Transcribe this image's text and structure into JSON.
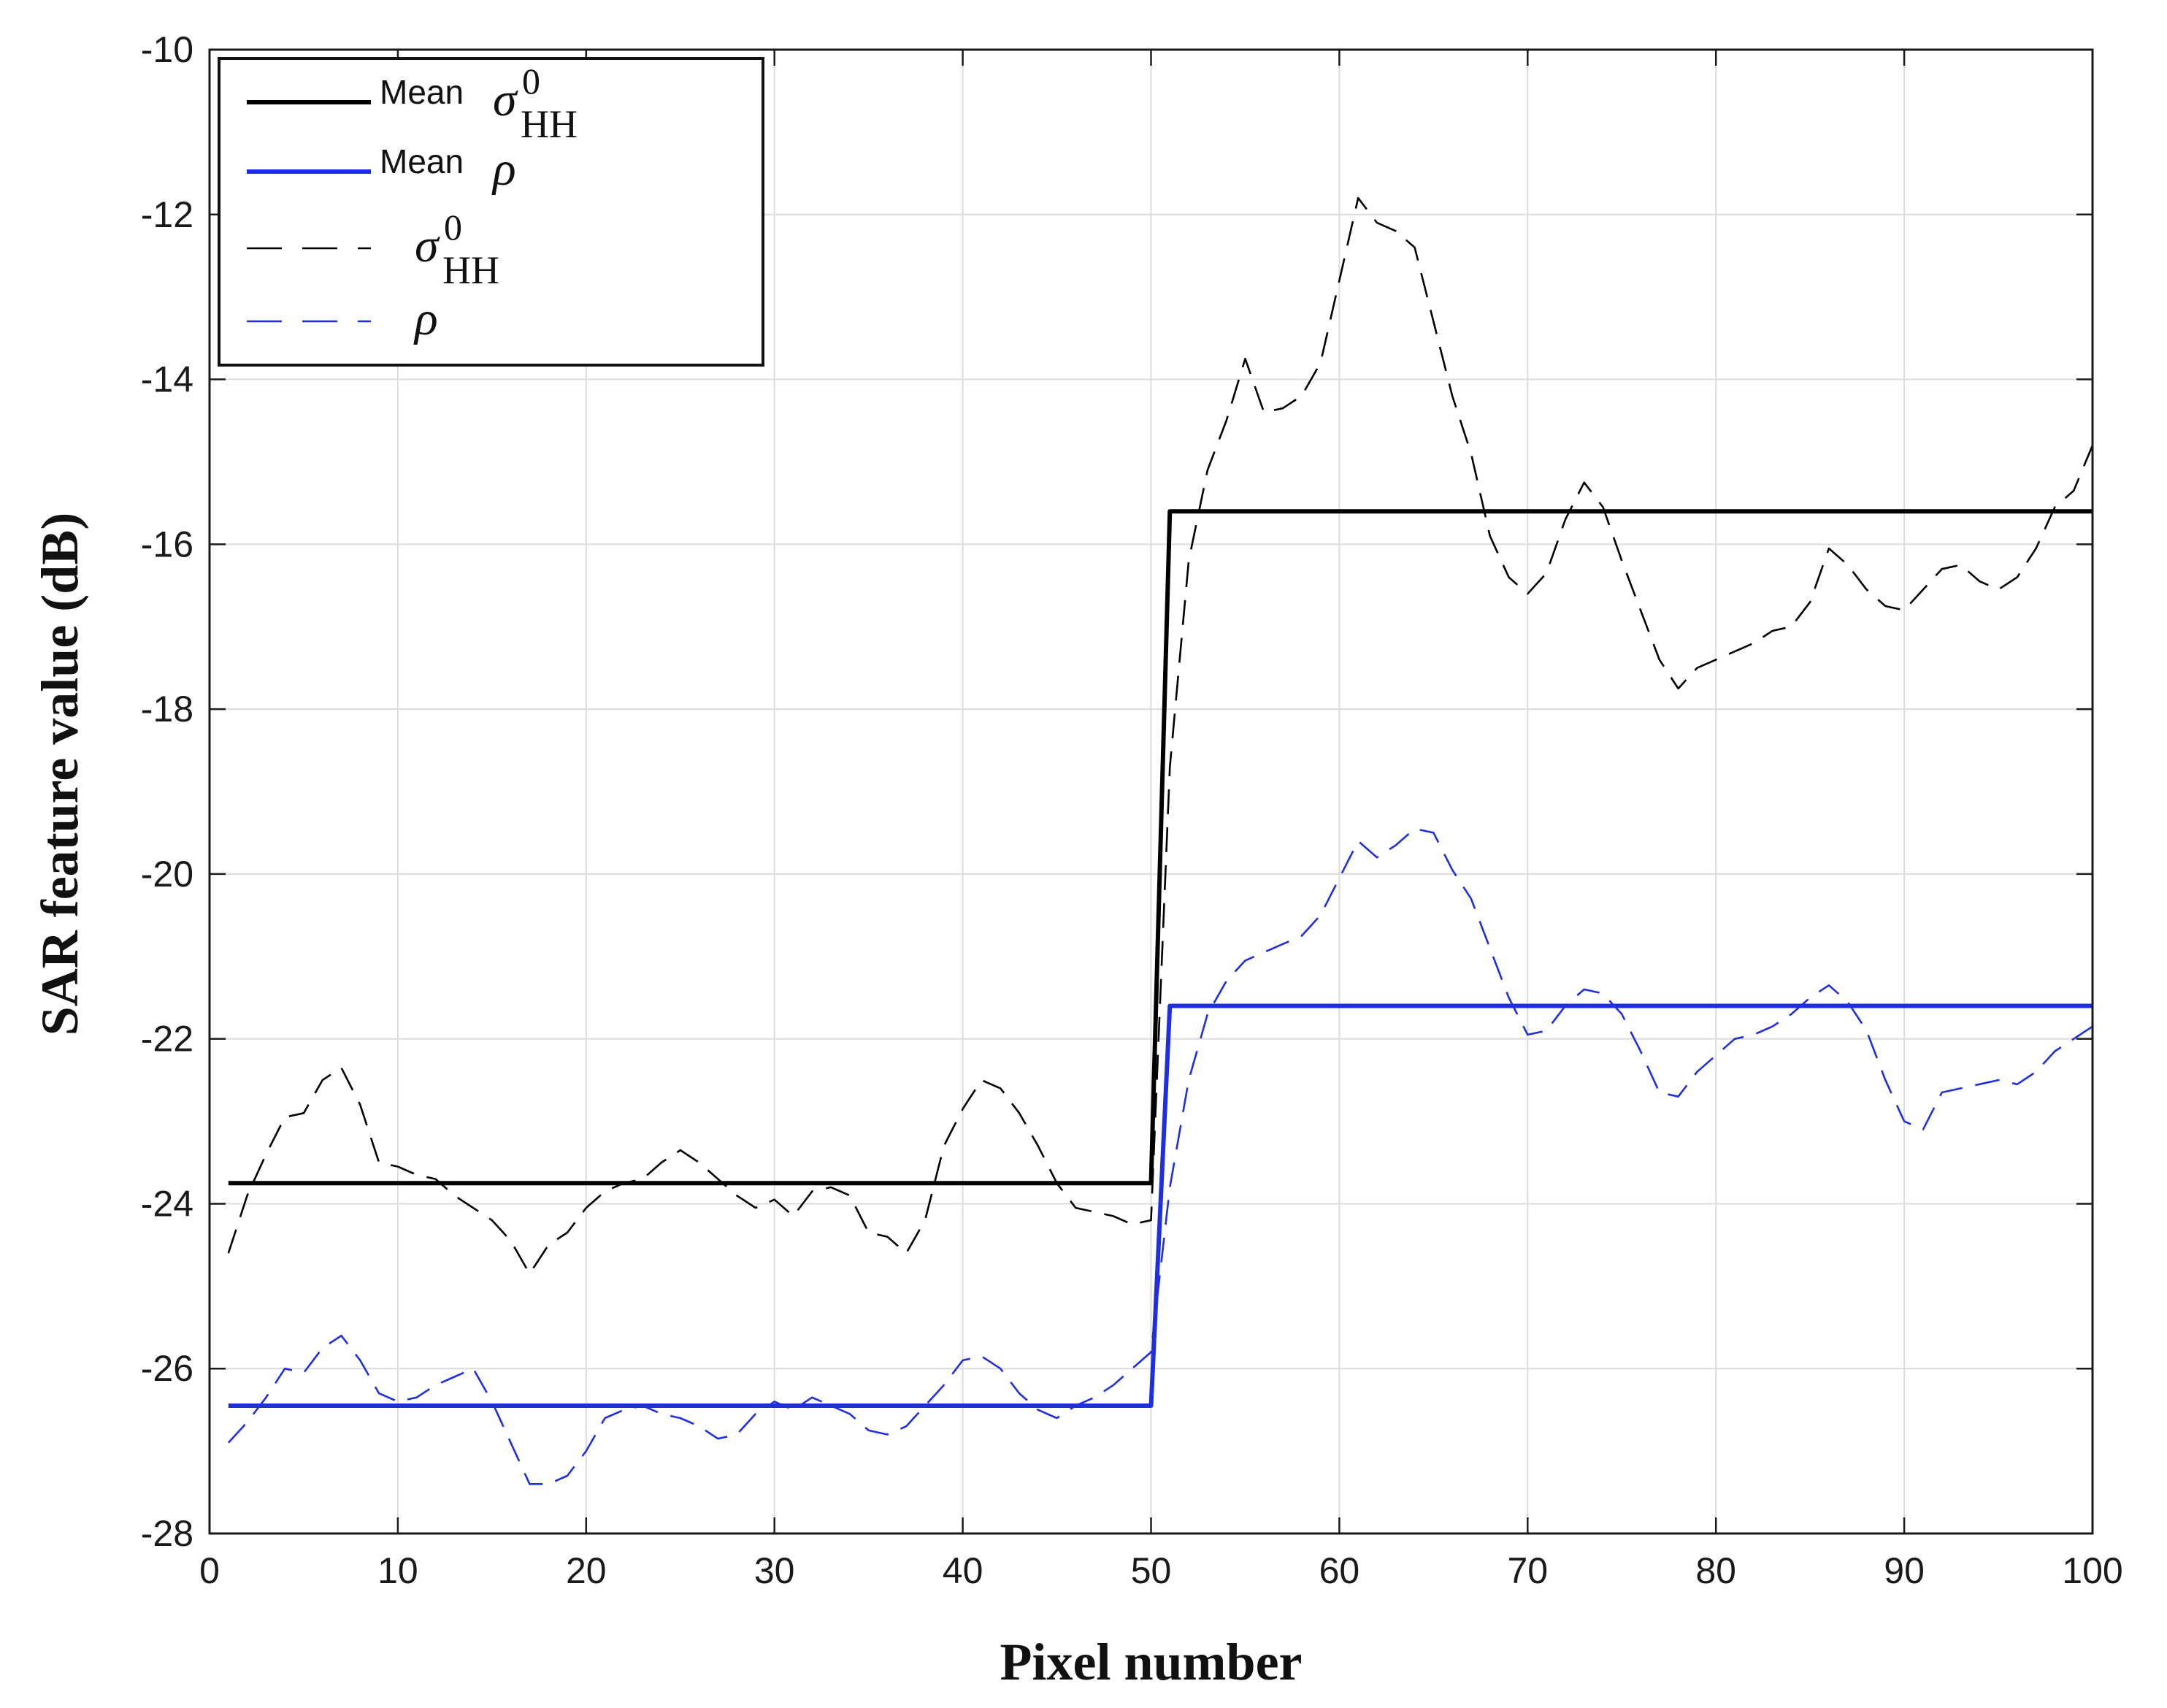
{
  "chart_data": {
    "type": "line",
    "title": "",
    "xlabel": "Pixel number",
    "ylabel": "SAR feature value (dB)",
    "xlim": [
      0,
      100
    ],
    "ylim": [
      -28,
      -10
    ],
    "xticks": [
      0,
      10,
      20,
      30,
      40,
      50,
      60,
      70,
      80,
      90,
      100
    ],
    "yticks": [
      -28,
      -26,
      -24,
      -22,
      -20,
      -18,
      -16,
      -14,
      -12,
      -10
    ],
    "x_tick_labels": [
      "0",
      "10",
      "20",
      "30",
      "40",
      "50",
      "60",
      "70",
      "80",
      "90",
      "100"
    ],
    "y_tick_labels": [
      "-28",
      "-26",
      "-24",
      "-22",
      "-20",
      "-18",
      "-16",
      "-14",
      "-12",
      "-10"
    ],
    "grid": true,
    "legend_position": "top-left",
    "series": [
      {
        "name": "Mean",
        "symbol": "σ",
        "superscript": "0",
        "subscript": "HH",
        "style": "solid",
        "color": "#000000",
        "x": [
          1,
          50,
          51,
          100
        ],
        "y": [
          -23.75,
          -23.75,
          -15.6,
          -15.6
        ]
      },
      {
        "name": "Mean",
        "symbol": "ρ",
        "superscript": "",
        "subscript": "",
        "style": "solid",
        "color": "#1f2fe0",
        "x": [
          1,
          50,
          51,
          100
        ],
        "y": [
          -26.45,
          -26.45,
          -21.6,
          -21.6
        ]
      },
      {
        "name": "",
        "symbol": "σ",
        "superscript": "0",
        "subscript": "HH",
        "style": "dashed",
        "color": "#000000",
        "x": [
          1,
          2,
          3,
          4,
          5,
          6,
          7,
          8,
          9,
          10,
          11,
          12,
          13,
          14,
          15,
          16,
          17,
          18,
          19,
          20,
          21,
          22,
          23,
          24,
          25,
          26,
          27,
          28,
          29,
          30,
          31,
          32,
          33,
          34,
          35,
          36,
          37,
          38,
          39,
          40,
          41,
          42,
          43,
          44,
          45,
          46,
          47,
          48,
          49,
          50,
          51,
          52,
          53,
          54,
          55,
          56,
          57,
          58,
          59,
          60,
          61,
          62,
          63,
          64,
          65,
          66,
          67,
          68,
          69,
          70,
          71,
          72,
          73,
          74,
          75,
          76,
          77,
          78,
          79,
          80,
          81,
          82,
          83,
          84,
          85,
          86,
          87,
          88,
          89,
          90,
          91,
          92,
          93,
          94,
          95,
          96,
          97,
          98,
          99,
          100
        ],
        "y": [
          -24.6,
          -23.9,
          -23.4,
          -22.95,
          -22.9,
          -22.5,
          -22.35,
          -22.8,
          -23.5,
          -23.55,
          -23.65,
          -23.7,
          -23.9,
          -24.05,
          -24.2,
          -24.45,
          -24.85,
          -24.5,
          -24.35,
          -24.05,
          -23.85,
          -23.75,
          -23.7,
          -23.5,
          -23.35,
          -23.5,
          -23.7,
          -23.9,
          -24.05,
          -23.95,
          -24.15,
          -23.85,
          -23.8,
          -23.9,
          -24.35,
          -24.4,
          -24.6,
          -24.2,
          -23.3,
          -22.85,
          -22.5,
          -22.6,
          -22.9,
          -23.3,
          -23.75,
          -24.05,
          -24.1,
          -24.15,
          -24.25,
          -24.2,
          -18.7,
          -16.2,
          -15.1,
          -14.5,
          -13.75,
          -14.4,
          -14.35,
          -14.2,
          -13.8,
          -12.8,
          -11.8,
          -12.1,
          -12.2,
          -12.4,
          -13.3,
          -14.2,
          -14.9,
          -15.9,
          -16.4,
          -16.6,
          -16.35,
          -15.7,
          -15.25,
          -15.55,
          -16.2,
          -16.8,
          -17.4,
          -17.75,
          -17.5,
          -17.4,
          -17.3,
          -17.2,
          -17.05,
          -17.0,
          -16.7,
          -16.05,
          -16.25,
          -16.55,
          -16.75,
          -16.8,
          -16.55,
          -16.3,
          -16.25,
          -16.45,
          -16.55,
          -16.4,
          -16.05,
          -15.55,
          -15.35,
          -14.8
        ]
      },
      {
        "name": "",
        "symbol": "ρ",
        "superscript": "",
        "subscript": "",
        "style": "dashed",
        "color": "#1f2fe0",
        "x": [
          1,
          2,
          3,
          4,
          5,
          6,
          7,
          8,
          9,
          10,
          11,
          12,
          13,
          14,
          15,
          16,
          17,
          18,
          19,
          20,
          21,
          22,
          23,
          24,
          25,
          26,
          27,
          28,
          29,
          30,
          31,
          32,
          33,
          34,
          35,
          36,
          37,
          38,
          39,
          40,
          41,
          42,
          43,
          44,
          45,
          46,
          47,
          48,
          49,
          50,
          51,
          52,
          53,
          54,
          55,
          56,
          57,
          58,
          59,
          60,
          61,
          62,
          63,
          64,
          65,
          66,
          67,
          68,
          69,
          70,
          71,
          72,
          73,
          74,
          75,
          76,
          77,
          78,
          79,
          80,
          81,
          82,
          83,
          84,
          85,
          86,
          87,
          88,
          89,
          90,
          91,
          92,
          93,
          94,
          95,
          96,
          97,
          98,
          99,
          100
        ],
        "y": [
          -26.9,
          -26.65,
          -26.35,
          -26.0,
          -26.05,
          -25.75,
          -25.6,
          -25.9,
          -26.3,
          -26.4,
          -26.35,
          -26.2,
          -26.1,
          -26.0,
          -26.4,
          -26.9,
          -27.4,
          -27.4,
          -27.3,
          -27.0,
          -26.6,
          -26.5,
          -26.45,
          -26.55,
          -26.6,
          -26.7,
          -26.85,
          -26.8,
          -26.55,
          -26.4,
          -26.5,
          -26.35,
          -26.45,
          -26.55,
          -26.75,
          -26.8,
          -26.7,
          -26.45,
          -26.2,
          -25.9,
          -25.85,
          -26.0,
          -26.3,
          -26.5,
          -26.6,
          -26.45,
          -26.35,
          -26.2,
          -26.0,
          -25.8,
          -23.8,
          -22.5,
          -21.7,
          -21.3,
          -21.05,
          -20.95,
          -20.85,
          -20.75,
          -20.5,
          -20.05,
          -19.6,
          -19.8,
          -19.65,
          -19.45,
          -19.5,
          -19.95,
          -20.3,
          -20.9,
          -21.5,
          -21.95,
          -21.9,
          -21.6,
          -21.4,
          -21.45,
          -21.7,
          -22.15,
          -22.65,
          -22.7,
          -22.4,
          -22.2,
          -22.0,
          -21.95,
          -21.85,
          -21.7,
          -21.5,
          -21.35,
          -21.55,
          -21.9,
          -22.5,
          -23.0,
          -23.1,
          -22.65,
          -22.6,
          -22.55,
          -22.5,
          -22.55,
          -22.4,
          -22.15,
          -22.0,
          -21.85
        ]
      }
    ]
  }
}
